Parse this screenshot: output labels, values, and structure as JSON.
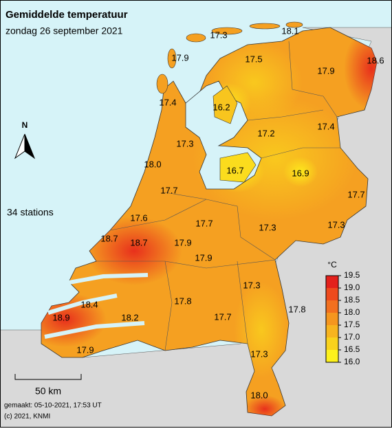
{
  "header": {
    "title": "Gemiddelde temperatuur",
    "subtitle": "zondag 26 september 2021"
  },
  "compass": "N",
  "stations": {
    "count_label": "34 stations",
    "values": [
      "17.3",
      "18.1",
      "17.9",
      "17.5",
      "17.9",
      "18.6",
      "17.4",
      "16.2",
      "17.2",
      "17.4",
      "17.3",
      "18.0",
      "16.7",
      "16.9",
      "17.7",
      "17.7",
      "17.6",
      "17.7",
      "17.3",
      "17.3",
      "18.7",
      "18.7",
      "17.9",
      "17.9",
      "17.3",
      "18.4",
      "17.8",
      "17.8",
      "18.9",
      "18.2",
      "17.7",
      "17.3",
      "17.9",
      "18.0"
    ]
  },
  "legend": {
    "unit": "°C",
    "ticks": [
      "19.5",
      "19.0",
      "18.5",
      "18.0",
      "17.5",
      "17.0",
      "16.5",
      "16.0"
    ],
    "colors": [
      "#e3211c",
      "#ee4a1d",
      "#f2701f",
      "#f5961f",
      "#f7b41f",
      "#f9d21c",
      "#fdf11c"
    ]
  },
  "scale": "50 km",
  "footer": {
    "made": "gemaakt: 05-10-2021, 17:53 UT",
    "copyright": "(c) 2021, KNMI"
  }
}
